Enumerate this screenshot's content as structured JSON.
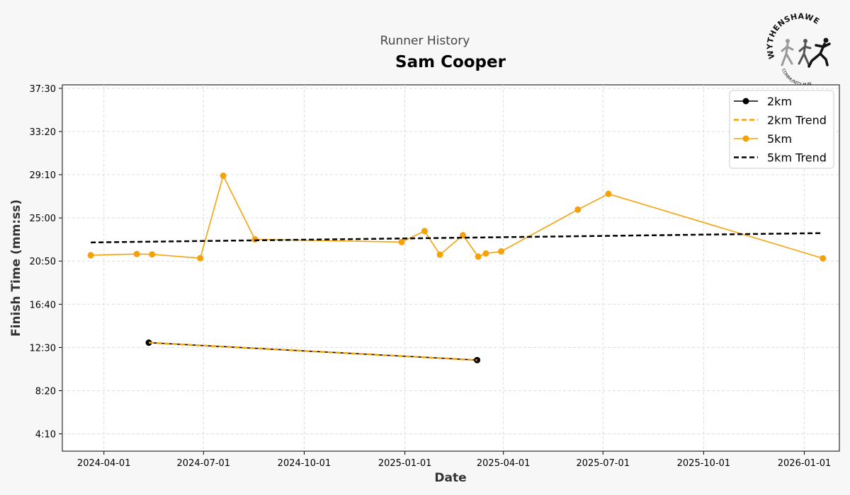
{
  "header": {
    "subtitle": "Runner History",
    "title": "Sam Cooper"
  },
  "logo": {
    "top_text": "WYTHENSHAWE",
    "bottom_text": "COMMUNITY RUN"
  },
  "colors": {
    "background": "#f7f7f7",
    "plot_background": "#ffffff",
    "series_2km": "#000000",
    "series_5km": "#f5a20a",
    "trend_2km": "#f5a20a",
    "trend_5km": "#000000",
    "grid": "#dcdcdc"
  },
  "chart_data": {
    "type": "line",
    "xlabel": "Date",
    "ylabel": "Finish Time (mm:ss)",
    "x_type": "date",
    "xlim": [
      "2024-02-23",
      "2026-02-02"
    ],
    "ylim_seconds": [
      150,
      2270
    ],
    "x_ticks": [
      "2024-04-01",
      "2024-07-01",
      "2024-10-01",
      "2025-01-01",
      "2025-04-01",
      "2025-07-01",
      "2025-10-01",
      "2026-01-01"
    ],
    "y_ticks": [
      {
        "seconds": 250,
        "label": "4:10"
      },
      {
        "seconds": 500,
        "label": "8:20"
      },
      {
        "seconds": 750,
        "label": "12:30"
      },
      {
        "seconds": 1000,
        "label": "16:40"
      },
      {
        "seconds": 1250,
        "label": "20:50"
      },
      {
        "seconds": 1500,
        "label": "25:00"
      },
      {
        "seconds": 1750,
        "label": "29:10"
      },
      {
        "seconds": 2000,
        "label": "33:20"
      },
      {
        "seconds": 2250,
        "label": "37:30"
      }
    ],
    "grid": true,
    "legend_position": "top-right",
    "series": [
      {
        "name": "2km",
        "kind": "line-marker",
        "color": "#000000",
        "points": [
          {
            "date": "2024-05-12",
            "seconds": 778
          },
          {
            "date": "2025-03-08",
            "seconds": 677
          }
        ]
      },
      {
        "name": "2km Trend",
        "kind": "trend",
        "color": "#f5a20a",
        "points": [
          {
            "date": "2024-05-12",
            "seconds": 778
          },
          {
            "date": "2025-03-08",
            "seconds": 677
          }
        ]
      },
      {
        "name": "5km",
        "kind": "line-marker",
        "color": "#f5a20a",
        "points": [
          {
            "date": "2024-03-20",
            "seconds": 1284
          },
          {
            "date": "2024-05-01",
            "seconds": 1291
          },
          {
            "date": "2024-05-15",
            "seconds": 1289
          },
          {
            "date": "2024-06-28",
            "seconds": 1267
          },
          {
            "date": "2024-07-19",
            "seconds": 1744
          },
          {
            "date": "2024-08-17",
            "seconds": 1376
          },
          {
            "date": "2024-12-29",
            "seconds": 1360
          },
          {
            "date": "2025-01-19",
            "seconds": 1424
          },
          {
            "date": "2025-02-02",
            "seconds": 1287
          },
          {
            "date": "2025-02-23",
            "seconds": 1400
          },
          {
            "date": "2025-03-09",
            "seconds": 1276
          },
          {
            "date": "2025-03-16",
            "seconds": 1294
          },
          {
            "date": "2025-03-30",
            "seconds": 1306
          },
          {
            "date": "2025-06-08",
            "seconds": 1548
          },
          {
            "date": "2025-07-06",
            "seconds": 1639
          },
          {
            "date": "2026-01-18",
            "seconds": 1266
          }
        ]
      },
      {
        "name": "5km Trend",
        "kind": "trend",
        "color": "#000000",
        "points": [
          {
            "date": "2024-03-20",
            "seconds": 1358
          },
          {
            "date": "2026-01-18",
            "seconds": 1412
          }
        ]
      }
    ]
  }
}
